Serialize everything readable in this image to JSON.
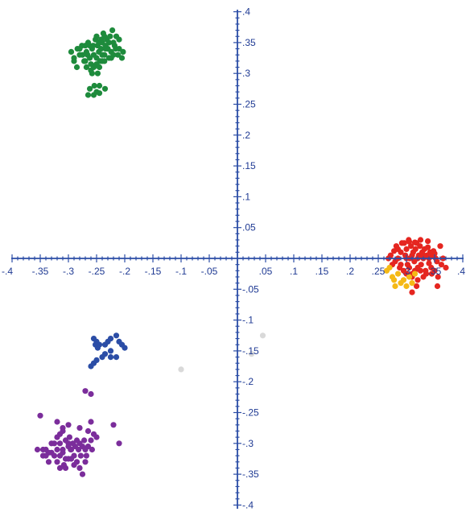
{
  "chart_data": {
    "type": "scatter",
    "title": "",
    "xlabel": "",
    "ylabel": "",
    "xlim": [
      -0.4,
      0.4
    ],
    "ylim": [
      -0.4,
      0.4
    ],
    "grid": false,
    "legend": "none",
    "axis_color": "#2b4da6",
    "x_ticks": [
      {
        "value": -0.4,
        "label": "-.4"
      },
      {
        "value": -0.35,
        "label": "-.35"
      },
      {
        "value": -0.3,
        "label": "-.3"
      },
      {
        "value": -0.25,
        "label": "-.25"
      },
      {
        "value": -0.2,
        "label": "-.2"
      },
      {
        "value": -0.15,
        "label": "-.15"
      },
      {
        "value": -0.1,
        "label": "-.1"
      },
      {
        "value": -0.05,
        "label": "-.05"
      },
      {
        "value": 0.05,
        "label": ".05"
      },
      {
        "value": 0.1,
        "label": ".1"
      },
      {
        "value": 0.15,
        "label": ".15"
      },
      {
        "value": 0.2,
        "label": ".2"
      },
      {
        "value": 0.25,
        "label": ".25"
      },
      {
        "value": 0.3,
        "label": ".3"
      },
      {
        "value": 0.35,
        "label": ".35"
      },
      {
        "value": 0.4,
        "label": ".4"
      }
    ],
    "y_ticks": [
      {
        "value": 0.4,
        "label": ".4"
      },
      {
        "value": 0.35,
        "label": ".35"
      },
      {
        "value": 0.3,
        "label": ".3"
      },
      {
        "value": 0.25,
        "label": ".25"
      },
      {
        "value": 0.2,
        "label": ".2"
      },
      {
        "value": 0.15,
        "label": ".15"
      },
      {
        "value": 0.1,
        "label": ".1"
      },
      {
        "value": 0.05,
        "label": ".05"
      },
      {
        "value": -0.05,
        "label": "-.05"
      },
      {
        "value": -0.1,
        "label": "-.1"
      },
      {
        "value": -0.15,
        "label": "-.15"
      },
      {
        "value": -0.2,
        "label": "-.2"
      },
      {
        "value": -0.25,
        "label": "-.25"
      },
      {
        "value": -0.3,
        "label": "-.3"
      },
      {
        "value": -0.35,
        "label": "-.35"
      },
      {
        "value": -0.4,
        "label": "-.4"
      }
    ],
    "series": [
      {
        "color": "#1e8b3c",
        "points": [
          [
            -0.295,
            0.335
          ],
          [
            -0.29,
            0.325
          ],
          [
            -0.285,
            0.31
          ],
          [
            -0.28,
            0.34
          ],
          [
            -0.275,
            0.33
          ],
          [
            -0.27,
            0.32
          ],
          [
            -0.27,
            0.345
          ],
          [
            -0.268,
            0.335
          ],
          [
            -0.265,
            0.35
          ],
          [
            -0.262,
            0.325
          ],
          [
            -0.26,
            0.315
          ],
          [
            -0.258,
            0.34
          ],
          [
            -0.255,
            0.33
          ],
          [
            -0.252,
            0.355
          ],
          [
            -0.25,
            0.36
          ],
          [
            -0.248,
            0.345
          ],
          [
            -0.246,
            0.335
          ],
          [
            -0.244,
            0.32
          ],
          [
            -0.242,
            0.34
          ],
          [
            -0.24,
            0.35
          ],
          [
            -0.238,
            0.365
          ],
          [
            -0.236,
            0.33
          ],
          [
            -0.234,
            0.345
          ],
          [
            -0.232,
            0.355
          ],
          [
            -0.23,
            0.34
          ],
          [
            -0.228,
            0.325
          ],
          [
            -0.226,
            0.36
          ],
          [
            -0.224,
            0.335
          ],
          [
            -0.222,
            0.37
          ],
          [
            -0.22,
            0.35
          ],
          [
            -0.218,
            0.345
          ],
          [
            -0.215,
            0.36
          ],
          [
            -0.212,
            0.33
          ],
          [
            -0.21,
            0.355
          ],
          [
            -0.205,
            0.325
          ],
          [
            -0.203,
            0.335
          ],
          [
            -0.26,
            0.305
          ],
          [
            -0.255,
            0.31
          ],
          [
            -0.25,
            0.315
          ],
          [
            -0.245,
            0.31
          ],
          [
            -0.24,
            0.32
          ],
          [
            -0.236,
            0.32
          ],
          [
            -0.28,
            0.33
          ],
          [
            -0.284,
            0.34
          ],
          [
            -0.29,
            0.32
          ],
          [
            -0.276,
            0.345
          ],
          [
            -0.266,
            0.33
          ],
          [
            -0.262,
            0.345
          ],
          [
            -0.256,
            0.345
          ],
          [
            -0.25,
            0.325
          ],
          [
            -0.246,
            0.35
          ],
          [
            -0.24,
            0.33
          ],
          [
            -0.234,
            0.34
          ],
          [
            -0.228,
            0.35
          ],
          [
            -0.224,
            0.325
          ],
          [
            -0.22,
            0.33
          ],
          [
            -0.216,
            0.34
          ],
          [
            -0.21,
            0.34
          ],
          [
            -0.258,
            0.3
          ],
          [
            -0.248,
            0.3
          ],
          [
            -0.254,
            0.28
          ],
          [
            -0.25,
            0.27
          ],
          [
            -0.262,
            0.275
          ],
          [
            -0.265,
            0.265
          ],
          [
            -0.255,
            0.265
          ],
          [
            -0.245,
            0.268
          ],
          [
            -0.235,
            0.275
          ],
          [
            -0.245,
            0.28
          ],
          [
            -0.272,
            0.32
          ],
          [
            -0.268,
            0.31
          ],
          [
            -0.242,
            0.355
          ],
          [
            -0.236,
            0.36
          ]
        ]
      },
      {
        "color": "#e52620",
        "points": [
          [
            0.268,
            0.0
          ],
          [
            0.272,
            0.005
          ],
          [
            0.275,
            -0.01
          ],
          [
            0.278,
            0.012
          ],
          [
            0.28,
            -0.005
          ],
          [
            0.282,
            0.02
          ],
          [
            0.285,
            0.0
          ],
          [
            0.288,
            -0.015
          ],
          [
            0.29,
            0.01
          ],
          [
            0.292,
            0.025
          ],
          [
            0.295,
            -0.02
          ],
          [
            0.298,
            0.005
          ],
          [
            0.3,
            0.015
          ],
          [
            0.302,
            -0.01
          ],
          [
            0.304,
            0.03
          ],
          [
            0.306,
            0.0
          ],
          [
            0.308,
            0.02
          ],
          [
            0.31,
            -0.025
          ],
          [
            0.312,
            0.01
          ],
          [
            0.314,
            -0.005
          ],
          [
            0.316,
            0.015
          ],
          [
            0.318,
            0.025
          ],
          [
            0.32,
            -0.015
          ],
          [
            0.322,
            0.005
          ],
          [
            0.324,
            0.02
          ],
          [
            0.326,
            -0.01
          ],
          [
            0.328,
            0.01
          ],
          [
            0.33,
            0.0
          ],
          [
            0.332,
            0.015
          ],
          [
            0.334,
            -0.02
          ],
          [
            0.336,
            0.005
          ],
          [
            0.338,
            0.018
          ],
          [
            0.34,
            -0.008
          ],
          [
            0.342,
            0.01
          ],
          [
            0.344,
            -0.015
          ],
          [
            0.346,
            0.005
          ],
          [
            0.348,
            0.012
          ],
          [
            0.35,
            -0.02
          ],
          [
            0.352,
            0.0
          ],
          [
            0.354,
            -0.005
          ],
          [
            0.356,
            -0.03
          ],
          [
            0.36,
            0.02
          ],
          [
            0.362,
            -0.01
          ],
          [
            0.365,
            0.0
          ],
          [
            0.37,
            -0.015
          ],
          [
            0.355,
            -0.045
          ],
          [
            0.3,
            -0.025
          ],
          [
            0.31,
            -0.03
          ],
          [
            0.32,
            -0.035
          ],
          [
            0.33,
            -0.03
          ],
          [
            0.296,
            0.025
          ],
          [
            0.305,
            0.027
          ],
          [
            0.315,
            0.026
          ],
          [
            0.325,
            0.03
          ],
          [
            0.3,
            0.0
          ],
          [
            0.31,
            0.005
          ],
          [
            0.32,
            0.0
          ],
          [
            0.33,
            0.005
          ],
          [
            0.34,
            0.0
          ],
          [
            0.35,
            0.008
          ],
          [
            0.285,
            0.015
          ],
          [
            0.29,
            -0.01
          ],
          [
            0.305,
            -0.015
          ],
          [
            0.315,
            -0.02
          ],
          [
            0.325,
            -0.02
          ],
          [
            0.335,
            -0.025
          ],
          [
            0.345,
            -0.025
          ],
          [
            0.31,
            -0.055
          ],
          [
            0.318,
            -0.045
          ],
          [
            0.338,
            0.028
          ]
        ]
      },
      {
        "color": "#f5b916",
        "points": [
          [
            0.27,
            -0.015
          ],
          [
            0.275,
            -0.03
          ],
          [
            0.28,
            -0.045
          ],
          [
            0.285,
            -0.025
          ],
          [
            0.29,
            -0.04
          ],
          [
            0.295,
            -0.035
          ],
          [
            0.3,
            -0.045
          ],
          [
            0.305,
            -0.03
          ],
          [
            0.31,
            -0.04
          ],
          [
            0.315,
            -0.025
          ],
          [
            0.265,
            -0.02
          ],
          [
            0.278,
            -0.035
          ]
        ]
      },
      {
        "color": "#2b4da6",
        "points": [
          [
            -0.255,
            -0.13
          ],
          [
            -0.25,
            -0.135
          ],
          [
            -0.245,
            -0.14
          ],
          [
            -0.248,
            -0.145
          ],
          [
            -0.252,
            -0.14
          ],
          [
            -0.235,
            -0.14
          ],
          [
            -0.23,
            -0.135
          ],
          [
            -0.225,
            -0.13
          ],
          [
            -0.215,
            -0.125
          ],
          [
            -0.21,
            -0.135
          ],
          [
            -0.2,
            -0.145
          ],
          [
            -0.205,
            -0.14
          ],
          [
            -0.24,
            -0.16
          ],
          [
            -0.25,
            -0.165
          ],
          [
            -0.255,
            -0.17
          ],
          [
            -0.26,
            -0.175
          ],
          [
            -0.235,
            -0.155
          ],
          [
            -0.225,
            -0.16
          ],
          [
            -0.215,
            -0.16
          ],
          [
            -0.225,
            -0.15
          ]
        ]
      },
      {
        "color": "#7b2d9b",
        "points": [
          [
            -0.35,
            -0.255
          ],
          [
            -0.355,
            -0.31
          ],
          [
            -0.345,
            -0.32
          ],
          [
            -0.34,
            -0.31
          ],
          [
            -0.335,
            -0.33
          ],
          [
            -0.33,
            -0.3
          ],
          [
            -0.325,
            -0.32
          ],
          [
            -0.32,
            -0.31
          ],
          [
            -0.315,
            -0.3
          ],
          [
            -0.31,
            -0.315
          ],
          [
            -0.305,
            -0.325
          ],
          [
            -0.3,
            -0.305
          ],
          [
            -0.298,
            -0.29
          ],
          [
            -0.295,
            -0.31
          ],
          [
            -0.292,
            -0.3
          ],
          [
            -0.29,
            -0.32
          ],
          [
            -0.288,
            -0.305
          ],
          [
            -0.285,
            -0.295
          ],
          [
            -0.282,
            -0.31
          ],
          [
            -0.28,
            -0.3
          ],
          [
            -0.278,
            -0.32
          ],
          [
            -0.275,
            -0.305
          ],
          [
            -0.272,
            -0.295
          ],
          [
            -0.27,
            -0.31
          ],
          [
            -0.268,
            -0.32
          ],
          [
            -0.265,
            -0.305
          ],
          [
            -0.26,
            -0.295
          ],
          [
            -0.258,
            -0.31
          ],
          [
            -0.3,
            -0.325
          ],
          [
            -0.308,
            -0.335
          ],
          [
            -0.315,
            -0.34
          ],
          [
            -0.305,
            -0.34
          ],
          [
            -0.295,
            -0.325
          ],
          [
            -0.29,
            -0.335
          ],
          [
            -0.285,
            -0.33
          ],
          [
            -0.28,
            -0.34
          ],
          [
            -0.275,
            -0.35
          ],
          [
            -0.27,
            -0.33
          ],
          [
            -0.3,
            -0.27
          ],
          [
            -0.31,
            -0.28
          ],
          [
            -0.315,
            -0.285
          ],
          [
            -0.28,
            -0.275
          ],
          [
            -0.265,
            -0.28
          ],
          [
            -0.26,
            -0.265
          ],
          [
            -0.255,
            -0.285
          ],
          [
            -0.25,
            -0.29
          ],
          [
            -0.27,
            -0.215
          ],
          [
            -0.26,
            -0.22
          ],
          [
            -0.32,
            -0.265
          ],
          [
            -0.31,
            -0.275
          ],
          [
            -0.305,
            -0.295
          ],
          [
            -0.32,
            -0.29
          ],
          [
            -0.325,
            -0.3
          ],
          [
            -0.33,
            -0.315
          ],
          [
            -0.335,
            -0.315
          ],
          [
            -0.34,
            -0.32
          ],
          [
            -0.345,
            -0.31
          ],
          [
            -0.22,
            -0.27
          ],
          [
            -0.21,
            -0.3
          ],
          [
            -0.315,
            -0.32
          ],
          [
            -0.32,
            -0.33
          ],
          [
            -0.3,
            -0.3
          ],
          [
            -0.31,
            -0.31
          ],
          [
            -0.296,
            -0.31
          ]
        ]
      },
      {
        "color": "#d9d9d9",
        "points": [
          [
            -0.1,
            -0.18
          ],
          [
            0.025,
            -0.155
          ],
          [
            0.045,
            -0.125
          ]
        ]
      }
    ]
  }
}
